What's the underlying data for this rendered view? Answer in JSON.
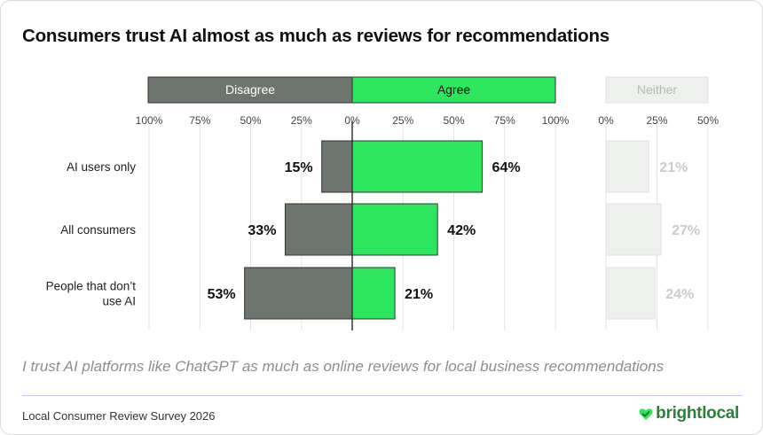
{
  "title": "Consumers trust AI almost as much as reviews for recommendations",
  "subtitle": "I trust AI platforms like ChatGPT as much as online reviews for local business recommendations",
  "footer": {
    "source": "Local Consumer Review Survey 2026",
    "brand": "brightlocal",
    "brand_icon": "heart-check-icon"
  },
  "colors": {
    "disagree": "#6e756e",
    "agree": "#2ee55e",
    "neither_fill": "#eef0ee",
    "neither_stroke": "#dfe2df",
    "neither_text": "#c9cdc9",
    "text": "#111111"
  },
  "chart_data": {
    "type": "bar",
    "orientation": "horizontal-diverging",
    "title": "Consumers trust AI almost as much as reviews for recommendations",
    "categories": [
      "AI users only",
      "All consumers",
      "People that don’t use AI"
    ],
    "category_lines": [
      [
        "AI users only"
      ],
      [
        "All consumers"
      ],
      [
        "People that don’t",
        "use AI"
      ]
    ],
    "series": [
      {
        "name": "Disagree",
        "values": [
          15,
          33,
          53
        ]
      },
      {
        "name": "Agree",
        "values": [
          64,
          42,
          21
        ]
      },
      {
        "name": "Neither",
        "values": [
          21,
          27,
          24
        ]
      }
    ],
    "value_labels": {
      "Disagree": [
        "15%",
        "33%",
        "53%"
      ],
      "Agree": [
        "64%",
        "42%",
        "21%"
      ],
      "Neither": [
        "21%",
        "27%",
        "24%"
      ]
    },
    "diverging_axis": {
      "range": [
        -100,
        100
      ],
      "ticks": [
        -100,
        -75,
        -50,
        -25,
        0,
        25,
        50,
        75,
        100
      ],
      "tick_labels": [
        "100%",
        "75%",
        "50%",
        "25%",
        "0%",
        "25%",
        "50%",
        "75%",
        "100%"
      ]
    },
    "neither_axis": {
      "range": [
        0,
        50
      ],
      "ticks": [
        0,
        25,
        50
      ],
      "tick_labels": [
        "0%",
        "25%",
        "50%"
      ]
    },
    "legend": [
      "Disagree",
      "Agree",
      "Neither"
    ]
  }
}
